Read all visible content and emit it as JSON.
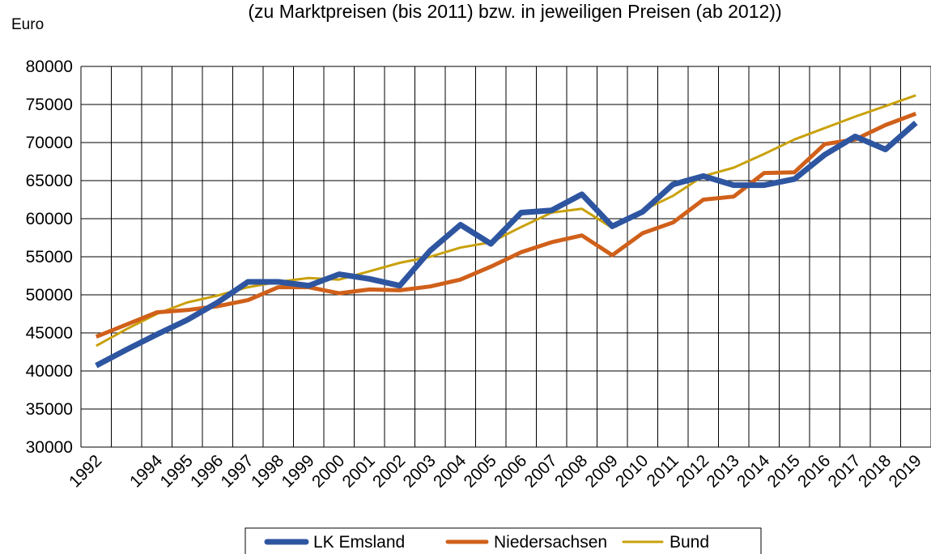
{
  "chart_data": {
    "type": "line",
    "title": "(zu Marktpreisen (bis 2011) bzw. in jeweiligen Preisen (ab 2012))",
    "y_label": "Euro",
    "categories": [
      "1992",
      null,
      "1994",
      "1995",
      "1996",
      "1997",
      "1998",
      "1999",
      "2000",
      "2001",
      "2002",
      "2003",
      "2004",
      "2005",
      "2006",
      "2007",
      "2008",
      "2009",
      "2010",
      "2011",
      "2012",
      "2013",
      "2014",
      "2015",
      "2016",
      "2017",
      "2018",
      "2019"
    ],
    "series": [
      {
        "name": "LK Emsland",
        "color": "#2e55a0",
        "values": [
          40700,
          42800,
          44800,
          46700,
          49000,
          51700,
          51700,
          51200,
          52700,
          52100,
          51200,
          55800,
          59200,
          56700,
          60800,
          61100,
          63200,
          59000,
          60900,
          64500,
          65600,
          64400,
          64400,
          65200,
          68400,
          70800,
          69100,
          72600
        ]
      },
      {
        "name": "Niedersachsen",
        "color": "#d0601a",
        "values": [
          44500,
          46100,
          47700,
          48000,
          48500,
          49300,
          51000,
          51000,
          50200,
          50700,
          50600,
          51100,
          52000,
          53700,
          55600,
          56900,
          57800,
          55200,
          58100,
          59500,
          62500,
          62900,
          66000,
          66100,
          69800,
          70400,
          72300,
          73800
        ]
      },
      {
        "name": "Bund",
        "color": "#c9a10b",
        "values": [
          43300,
          45500,
          47500,
          49000,
          49900,
          51000,
          51700,
          52200,
          52000,
          53100,
          54200,
          55000,
          56200,
          56900,
          58900,
          60800,
          61300,
          58800,
          61100,
          63000,
          65600,
          66700,
          68500,
          70400,
          71900,
          73400,
          74800,
          76200
        ]
      }
    ],
    "ylim": [
      30000,
      80000
    ],
    "yticks": [
      30000,
      35000,
      40000,
      45000,
      50000,
      55000,
      60000,
      65000,
      70000,
      75000,
      80000
    ],
    "grid": true,
    "legend": "bottom"
  }
}
